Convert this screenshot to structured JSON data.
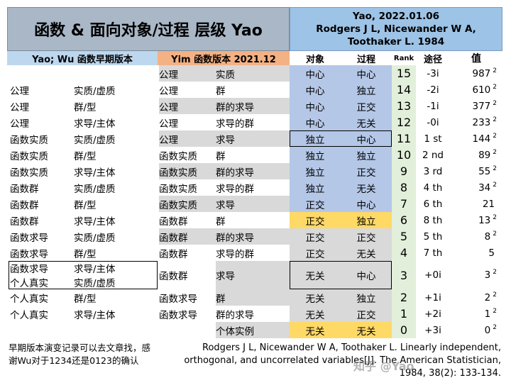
{
  "header": {
    "title": "函数 & 面向对象/过程 层级 Yao",
    "ref_line1": "Yao, 2022.01.06",
    "ref_line2": "Rodgers J L, Nicewander W A,",
    "ref_line3": "Toothaker L. 1984"
  },
  "subheaders": {
    "wu": "Yao; Wu 函数早期版本",
    "yim": "Yim 函数版本 2021.12",
    "object": "对象",
    "process": "过程",
    "rank": "Rank",
    "path": "途径",
    "value": "值"
  },
  "colors": {
    "title_bg": "#a9b7c6",
    "ref_bg": "#9dc3e6",
    "wu_bg": "#bdd7ee",
    "yim_bg": "#f4b183",
    "rank_bg": "#e2efda",
    "yellow": "#ffd966",
    "blue": "#b4c7e7",
    "grey": "#d9d9d9"
  },
  "rows": [
    {
      "wu1": "",
      "wu2": "",
      "yim1": "公理",
      "yim2": "实质",
      "obj": "中心",
      "proc": "中心",
      "rank": "15",
      "path": "-3i",
      "val": "987",
      "sup": "2"
    },
    {
      "wu1": "公理",
      "wu2": "实质/虚质",
      "yim1": "公理",
      "yim2": "群",
      "obj": "中心",
      "proc": "独立",
      "rank": "14",
      "path": "-2i",
      "val": "610",
      "sup": "2"
    },
    {
      "wu1": "公理",
      "wu2": "群/型",
      "yim1": "公理",
      "yim2": "群的求导",
      "obj": "中心",
      "proc": "正交",
      "rank": "13",
      "path": "-1i",
      "val": "377",
      "sup": "2"
    },
    {
      "wu1": "公理",
      "wu2": "求导/主体",
      "yim1": "公理",
      "yim2": "求导的群",
      "obj": "中心",
      "proc": "无关",
      "rank": "12",
      "path": "-0i",
      "val": "233",
      "sup": "2"
    },
    {
      "wu1": "函数实质",
      "wu2": "实质/虚质",
      "yim1": "公理",
      "yim2": "求导",
      "obj": "独立",
      "proc": "中心",
      "rank": "11",
      "path": "1 st",
      "val": "144",
      "sup": "2"
    },
    {
      "wu1": "函数实质",
      "wu2": "群/型",
      "yim1": "函数实质",
      "yim2": "群",
      "obj": "独立",
      "proc": "独立",
      "rank": "10",
      "path": "2 nd",
      "val": "89",
      "sup": "2"
    },
    {
      "wu1": "函数实质",
      "wu2": "求导/主体",
      "yim1": "函数实质",
      "yim2": "群的求导",
      "obj": "独立",
      "proc": "正交",
      "rank": "9",
      "path": "3 rd",
      "val": "55",
      "sup": "2"
    },
    {
      "wu1": "函数群",
      "wu2": "实质/虚质",
      "yim1": "函数实质",
      "yim2": "求导的群",
      "obj": "独立",
      "proc": "无关",
      "rank": "8",
      "path": "4 th",
      "val": "34",
      "sup": "2"
    },
    {
      "wu1": "函数群",
      "wu2": "群/型",
      "yim1": "函数实质",
      "yim2": "求导",
      "obj": "正交",
      "proc": "中心",
      "rank": "7",
      "path": "6 th",
      "val": "21",
      "sup": ""
    },
    {
      "wu1": "函数群",
      "wu2": "求导/主体",
      "yim1": "函数群",
      "yim2": "群",
      "obj": "正交",
      "proc": "独立",
      "rank": "6",
      "path": "8 th",
      "val": "13",
      "sup": "2"
    },
    {
      "wu1": "函数求导",
      "wu2": "实质/虚质",
      "yim1": "函数群",
      "yim2": "群的求导",
      "obj": "正交",
      "proc": "正交",
      "rank": "5",
      "path": "5 th",
      "val": "8",
      "sup": "2"
    },
    {
      "wu1": "函数求导",
      "wu2": "群/型",
      "yim1": "函数群",
      "yim2": "求导的群",
      "obj": "正交",
      "proc": "无关",
      "rank": "4",
      "path": "7 th",
      "val": "5",
      "sup": ""
    }
  ],
  "merged_row": {
    "wu_a1": "函数求导",
    "wu_a2": "求导/主体",
    "wu_b1": "个人真实",
    "wu_b2": "实质/虚质",
    "yim1": "函数群",
    "yim2": "求导",
    "obj": "无关",
    "proc": "中心",
    "rank": "3",
    "path": "+0i",
    "val": "3",
    "sup": "2"
  },
  "tail_rows": [
    {
      "wu1": "个人真实",
      "wu2": "群/型",
      "yim1": "函数求导",
      "yim2": "群",
      "obj": "无关",
      "proc": "独立",
      "rank": "2",
      "path": "+1i",
      "val": "2",
      "sup": "2"
    },
    {
      "wu1": "个人真实",
      "wu2": "求导/主体",
      "yim1": "函数求导",
      "yim2": "群的求导",
      "obj": "无关",
      "proc": "正交",
      "rank": "1",
      "path": "+2i",
      "val": "1",
      "sup": "2"
    },
    {
      "wu1": "",
      "wu2": "",
      "yim1": "",
      "yim2": "个体实例",
      "obj": "无关",
      "proc": "无关",
      "rank": "0",
      "path": "+3i",
      "val": "0",
      "sup": "2"
    }
  ],
  "footer": {
    "notes": "早期版本演变记录可以去文章找，感谢Wu对于1234还是0123的确认",
    "cite_line1": "Rodgers J L, Nicewander W A, Toothaker L. Linearly independent,",
    "cite_line2": "orthogonal, and uncorrelated variables[J]. The American Statistician,",
    "cite_line3": "1984, 38(2): 133-134.",
    "watermark": "知乎 @Yao"
  }
}
